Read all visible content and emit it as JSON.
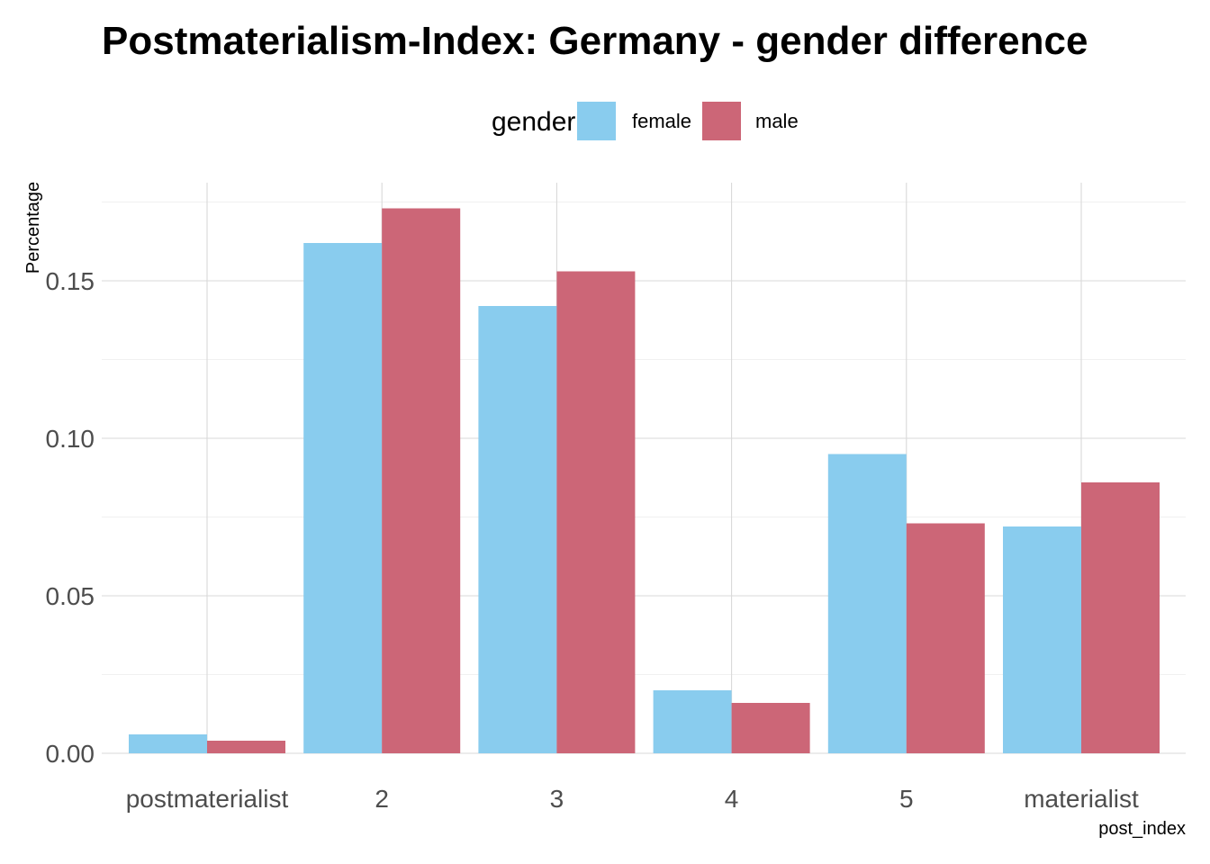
{
  "chart_data": {
    "type": "bar",
    "title": "Postmaterialism-Index: Germany - gender difference",
    "xlabel": "post_index",
    "ylabel": "Percentage",
    "categories": [
      "postmaterialist",
      "2",
      "3",
      "4",
      "5",
      "materialist"
    ],
    "series": [
      {
        "name": "female",
        "color": "#89CCEE",
        "values": [
          0.006,
          0.162,
          0.142,
          0.02,
          0.095,
          0.072
        ]
      },
      {
        "name": "male",
        "color": "#CC6677",
        "values": [
          0.004,
          0.173,
          0.153,
          0.016,
          0.073,
          0.086
        ]
      }
    ],
    "ylim": [
      0,
      0.175
    ],
    "yticks": [
      0.0,
      0.05,
      0.1,
      0.15
    ],
    "ytick_labels": [
      "0.00",
      "0.05",
      "0.10",
      "0.15"
    ],
    "legend": {
      "title": "gender",
      "position": "top"
    },
    "grid": true
  }
}
